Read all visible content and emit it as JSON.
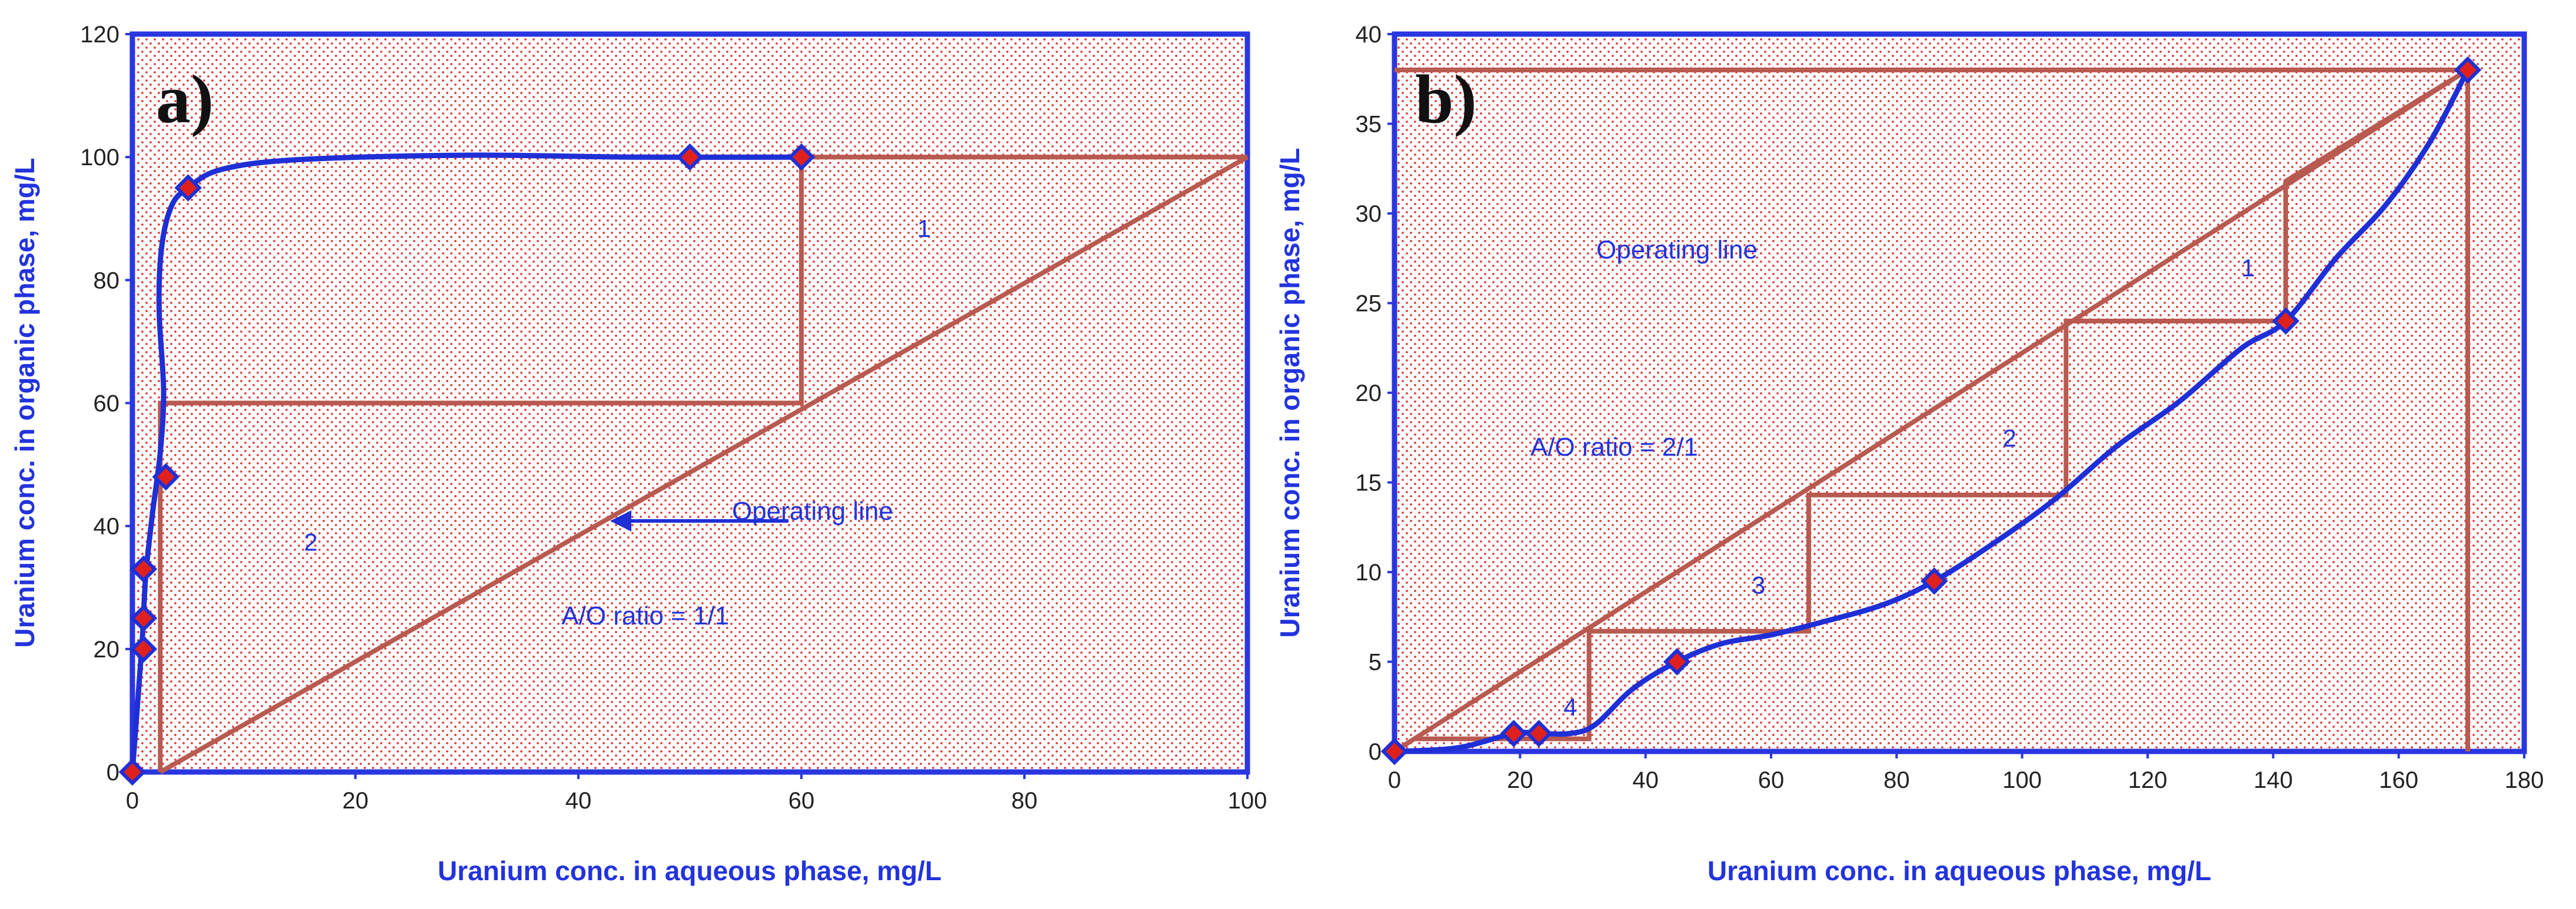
{
  "chart_data": [
    {
      "type": "line",
      "panel_label": "a)",
      "xlabel": "Uranium conc. in aqueous phase, mg/L",
      "ylabel": "Uranium conc. in organic phase, mg/L",
      "xlim": [
        0,
        100
      ],
      "ylim": [
        0,
        120
      ],
      "xticks": [
        0,
        20,
        40,
        60,
        80,
        100
      ],
      "yticks": [
        0,
        20,
        40,
        60,
        80,
        100,
        120
      ],
      "series": [
        {
          "name": "Equilibrium curve",
          "color": "#1f2fd6",
          "points": [
            [
              0,
              0
            ],
            [
              1,
              20
            ],
            [
              1,
              25
            ],
            [
              1,
              33
            ],
            [
              3,
              48
            ],
            [
              5,
              95
            ],
            [
              50,
              100
            ],
            [
              60,
              100
            ]
          ],
          "curve": [
            [
              0,
              0
            ],
            [
              0.5,
              12
            ],
            [
              0.9,
              22
            ],
            [
              1.2,
              32
            ],
            [
              1.8,
              42
            ],
            [
              2.5,
              52
            ],
            [
              2.8,
              62
            ],
            [
              2.4,
              75
            ],
            [
              2.6,
              85
            ],
            [
              3.5,
              92
            ],
            [
              5,
              95
            ],
            [
              8,
              98
            ],
            [
              15,
              99.6
            ],
            [
              30,
              100.3
            ],
            [
              45,
              100
            ],
            [
              60,
              100
            ]
          ]
        },
        {
          "name": "Operating line",
          "color": "#b85a50",
          "points": [
            [
              2.5,
              0
            ],
            [
              100,
              100
            ]
          ]
        },
        {
          "name": "Stages",
          "color": "#b85a50",
          "points": [
            [
              100,
              100
            ],
            [
              60,
              100
            ],
            [
              60,
              60
            ],
            [
              2.5,
              60
            ],
            [
              2.5,
              0
            ]
          ]
        }
      ],
      "annotations": [
        {
          "text": "1",
          "x": 71,
          "y": 87
        },
        {
          "text": "2",
          "x": 16,
          "y": 36
        },
        {
          "text": "Operating line",
          "x": 61,
          "y": 41
        },
        {
          "text": "A/O ratio = 1/1",
          "x": 46,
          "y": 24
        }
      ]
    },
    {
      "type": "line",
      "panel_label": "b)",
      "xlabel": "Uranium conc. in aqueous phase, mg/L",
      "ylabel": "Uranium conc. in organic phase, mg/L",
      "xlim": [
        0,
        180
      ],
      "ylim": [
        0,
        40
      ],
      "xticks": [
        0,
        20,
        40,
        60,
        80,
        100,
        120,
        140,
        160,
        180
      ],
      "yticks": [
        0,
        5,
        10,
        15,
        20,
        25,
        30,
        35,
        40
      ],
      "series": [
        {
          "name": "Equilibrium curve",
          "color": "#1f2fd6",
          "points": [
            [
              0,
              0
            ],
            [
              19,
              1
            ],
            [
              23,
              1
            ],
            [
              45,
              5
            ],
            [
              86,
              9.5
            ],
            [
              142,
              24
            ],
            [
              171,
              38
            ]
          ],
          "curve": [
            [
              0,
              0
            ],
            [
              10,
              0.2
            ],
            [
              19,
              1
            ],
            [
              23,
              1
            ],
            [
              28,
              1
            ],
            [
              32,
              1.5
            ],
            [
              38,
              3.5
            ],
            [
              45,
              5
            ],
            [
              52,
              6
            ],
            [
              60,
              6.5
            ],
            [
              68,
              7.2
            ],
            [
              78,
              8.2
            ],
            [
              86,
              9.5
            ],
            [
              95,
              11.5
            ],
            [
              105,
              14
            ],
            [
              115,
              17
            ],
            [
              125,
              19.5
            ],
            [
              135,
              22.5
            ],
            [
              142,
              24
            ],
            [
              150,
              27.5
            ],
            [
              158,
              30.5
            ],
            [
              165,
              34
            ],
            [
              171,
              38
            ]
          ]
        },
        {
          "name": "Operating line",
          "color": "#b85a50",
          "points": [
            [
              0,
              0
            ],
            [
              171,
              38
            ]
          ]
        },
        {
          "name": "Stages",
          "color": "#b85a50",
          "points": [
            [
              171,
              38
            ],
            [
              142,
              31.8
            ],
            [
              142,
              24
            ],
            [
              107,
              24
            ],
            [
              107,
              14.3
            ],
            [
              66,
              14.3
            ],
            [
              66,
              6.7
            ],
            [
              31,
              6.7
            ],
            [
              31,
              0.7
            ],
            [
              3,
              0.7
            ]
          ]
        },
        {
          "name": "Guide lines",
          "color": "#b85a50",
          "points": [
            [
              0,
              38
            ],
            [
              171,
              38
            ],
            [
              171,
              0
            ]
          ]
        }
      ],
      "annotations": [
        {
          "text": "1",
          "x": 136,
          "y": 26.5
        },
        {
          "text": "2",
          "x": 98,
          "y": 17
        },
        {
          "text": "3",
          "x": 58,
          "y": 8.8
        },
        {
          "text": "4",
          "x": 28,
          "y": 2
        },
        {
          "text": "Operating line",
          "x": 45,
          "y": 27.5
        },
        {
          "text": "A/O ratio = 2/1",
          "x": 35,
          "y": 16.5
        }
      ]
    }
  ]
}
